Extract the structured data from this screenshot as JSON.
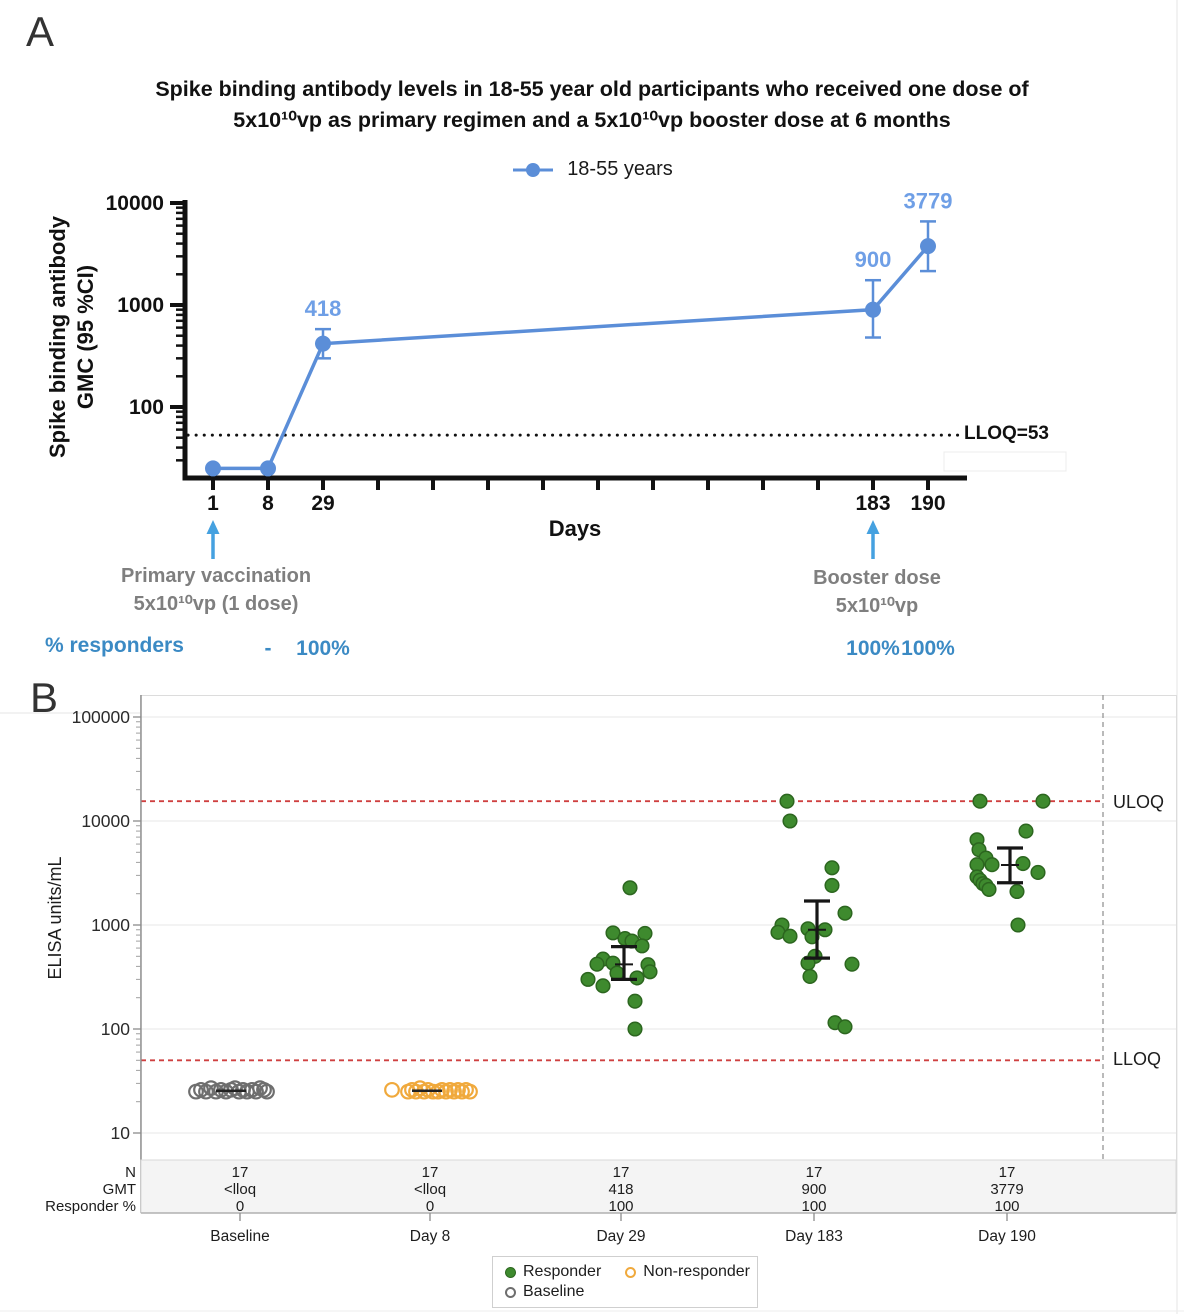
{
  "figure": {
    "panel_a": {
      "panel_label": "A",
      "title_line1": "Spike binding antibody levels in 18-55 year old participants who received one dose of",
      "title_line2": "5x10¹⁰vp as primary regimen and a 5x10¹⁰vp booster dose at 6 months",
      "legend_label": "18-55 years",
      "y_axis_title_line1": "Spike binding antibody",
      "y_axis_title_line2": "GMC (95 %CI)",
      "x_axis_title": "Days",
      "lloq_label": "LLOQ=53",
      "annotation_primary_line1": "Primary vaccination",
      "annotation_primary_line2": "5x10¹⁰vp (1 dose)",
      "annotation_booster_line1": "Booster dose",
      "annotation_booster_line2": "5x10¹⁰vp",
      "responders_label": "% responders"
    },
    "panel_b": {
      "panel_label": "B",
      "y_axis_title": "ELISA units/mL",
      "uloq_label": "ULOQ",
      "lloq_label": "LLOQ",
      "legend": {
        "responder": "Responder",
        "non_responder": "Non-responder",
        "baseline": "Baseline"
      }
    }
  },
  "colors": {
    "series_blue": "#5b8ed8",
    "value_label_blue": "#6f9fe6",
    "arrow_blue": "#45a1e0",
    "responders_blue": "#3b8ac4",
    "annotation_gray": "#7f7f7f",
    "responder_green": "#3e8a2e",
    "responder_green_edge": "#2c661f",
    "non_responder_orange": "#f0a93c",
    "baseline_gray": "#6e6e6e",
    "loq_red": "#cf4040",
    "gridline_gray": "#ececec"
  },
  "chart_data": [
    {
      "panel": "A",
      "type": "line",
      "title": "Spike binding antibody levels in 18-55 year old participants who received one dose of 5x10¹⁰vp as primary regimen and a 5x10¹⁰vp booster dose at 6 months",
      "series_name": "18-55 years",
      "xlabel": "Days",
      "ylabel": "Spike binding antibody GMC (95 %CI)",
      "y_scale": "log",
      "ylim": [
        20,
        10000
      ],
      "y_major_ticks": [
        100,
        1000,
        10000
      ],
      "x_ticks": [
        "1",
        "8",
        "29",
        "",
        "",
        "",
        "",
        "",
        "",
        "",
        "",
        "",
        "183",
        "190"
      ],
      "points": [
        {
          "day": 1,
          "tick": 0,
          "gmc": 25,
          "below_lloq": true
        },
        {
          "day": 8,
          "tick": 1,
          "gmc": 25,
          "below_lloq": true
        },
        {
          "day": 29,
          "tick": 2,
          "gmc": 418,
          "ci": [
            300,
            580
          ],
          "label": "418"
        },
        {
          "day": 183,
          "tick": 12,
          "gmc": 900,
          "ci": [
            480,
            1750
          ],
          "label": "900"
        },
        {
          "day": 190,
          "tick": 13,
          "gmc": 3779,
          "ci": [
            2150,
            6600
          ],
          "label": "3779"
        }
      ],
      "lloq_value": 53,
      "responders": [
        {
          "tick": 1,
          "text": "-"
        },
        {
          "tick": 2,
          "text": "100%"
        },
        {
          "tick": 12,
          "text": "100%"
        },
        {
          "tick": 13,
          "text": "100%"
        }
      ],
      "events": [
        {
          "tick": 0,
          "label": "Primary vaccination 5x10¹⁰vp (1 dose)"
        },
        {
          "tick": 12,
          "label": "Booster dose 5x10¹⁰vp"
        }
      ]
    },
    {
      "panel": "B",
      "type": "scatter",
      "ylabel": "ELISA units/mL",
      "y_scale": "log",
      "ylim": [
        10,
        100000
      ],
      "y_ticks": [
        10,
        100,
        1000,
        10000,
        100000
      ],
      "uloq": 15500,
      "lloq": 50,
      "table_row_labels": [
        "N",
        "GMT",
        "Responder %"
      ],
      "groups": [
        {
          "label": "Baseline",
          "n": "17",
          "gmt": "<lloq",
          "responder_pct": "0",
          "marker": "baseline",
          "center_line": 25.5,
          "center_line_dx": -9,
          "dots": [
            [
              25,
              -44
            ],
            [
              26,
              -39
            ],
            [
              25,
              -34
            ],
            [
              27,
              -29
            ],
            [
              25,
              -24
            ],
            [
              26,
              -19
            ],
            [
              25,
              -14
            ],
            [
              26,
              -9
            ],
            [
              27,
              -5
            ],
            [
              25,
              -1
            ],
            [
              26,
              3
            ],
            [
              25,
              7
            ],
            [
              26,
              12
            ],
            [
              25,
              16
            ],
            [
              27,
              20
            ],
            [
              26,
              24
            ],
            [
              25,
              27
            ]
          ]
        },
        {
          "label": "Day 8",
          "n": "17",
          "gmt": "<lloq",
          "responder_pct": "0",
          "marker": "non_responder",
          "center_line": 25.5,
          "center_line_dx": -3,
          "dots": [
            [
              26,
              -38
            ],
            [
              25,
              -22
            ],
            [
              26,
              -18
            ],
            [
              25,
              -14
            ],
            [
              27,
              -10
            ],
            [
              25,
              -6
            ],
            [
              26,
              -2
            ],
            [
              25,
              3
            ],
            [
              25,
              8
            ],
            [
              26,
              12
            ],
            [
              25,
              16
            ],
            [
              26,
              20
            ],
            [
              25,
              24
            ],
            [
              26,
              28
            ],
            [
              25,
              32
            ],
            [
              26,
              36
            ],
            [
              25,
              40
            ]
          ]
        },
        {
          "label": "Day 29",
          "n": "17",
          "gmt": "418",
          "responder_pct": "100",
          "marker": "responder",
          "errorbar": {
            "lo": 300,
            "mid": 418,
            "hi": 620
          },
          "dots": [
            [
              2280,
              9
            ],
            [
              840,
              -8
            ],
            [
              830,
              24
            ],
            [
              740,
              4
            ],
            [
              700,
              11
            ],
            [
              630,
              21
            ],
            [
              470,
              -18
            ],
            [
              430,
              -8
            ],
            [
              420,
              -24
            ],
            [
              415,
              27
            ],
            [
              355,
              29
            ],
            [
              345,
              -4
            ],
            [
              310,
              16
            ],
            [
              300,
              -33
            ],
            [
              260,
              -18
            ],
            [
              185,
              14
            ],
            [
              100,
              14
            ]
          ]
        },
        {
          "label": "Day 183",
          "n": "17",
          "gmt": "900",
          "responder_pct": "100",
          "marker": "responder",
          "errorbar": {
            "lo": 480,
            "mid": 900,
            "hi": 1700
          },
          "dots": [
            [
              15500,
              -27
            ],
            [
              10000,
              -24
            ],
            [
              3550,
              18
            ],
            [
              2400,
              18
            ],
            [
              1300,
              31
            ],
            [
              1000,
              -32
            ],
            [
              920,
              -6
            ],
            [
              900,
              11
            ],
            [
              850,
              -36
            ],
            [
              780,
              -24
            ],
            [
              770,
              -2
            ],
            [
              500,
              1
            ],
            [
              430,
              -6
            ],
            [
              420,
              38
            ],
            [
              320,
              -4
            ],
            [
              115,
              21
            ],
            [
              105,
              31
            ]
          ]
        },
        {
          "label": "Day 190",
          "n": "17",
          "gmt": "3779",
          "responder_pct": "100",
          "marker": "responder",
          "errorbar": {
            "lo": 2550,
            "mid": 3779,
            "hi": 5500
          },
          "dots": [
            [
              15500,
              -27
            ],
            [
              15500,
              36
            ],
            [
              8000,
              19
            ],
            [
              6600,
              -30
            ],
            [
              5300,
              -28
            ],
            [
              4400,
              -21
            ],
            [
              3900,
              16
            ],
            [
              3800,
              -30
            ],
            [
              3800,
              -15
            ],
            [
              3200,
              31
            ],
            [
              2900,
              -30
            ],
            [
              2700,
              -27
            ],
            [
              2500,
              -24
            ],
            [
              2400,
              -21
            ],
            [
              2200,
              -18
            ],
            [
              2100,
              10
            ],
            [
              1000,
              11
            ]
          ]
        }
      ]
    }
  ]
}
